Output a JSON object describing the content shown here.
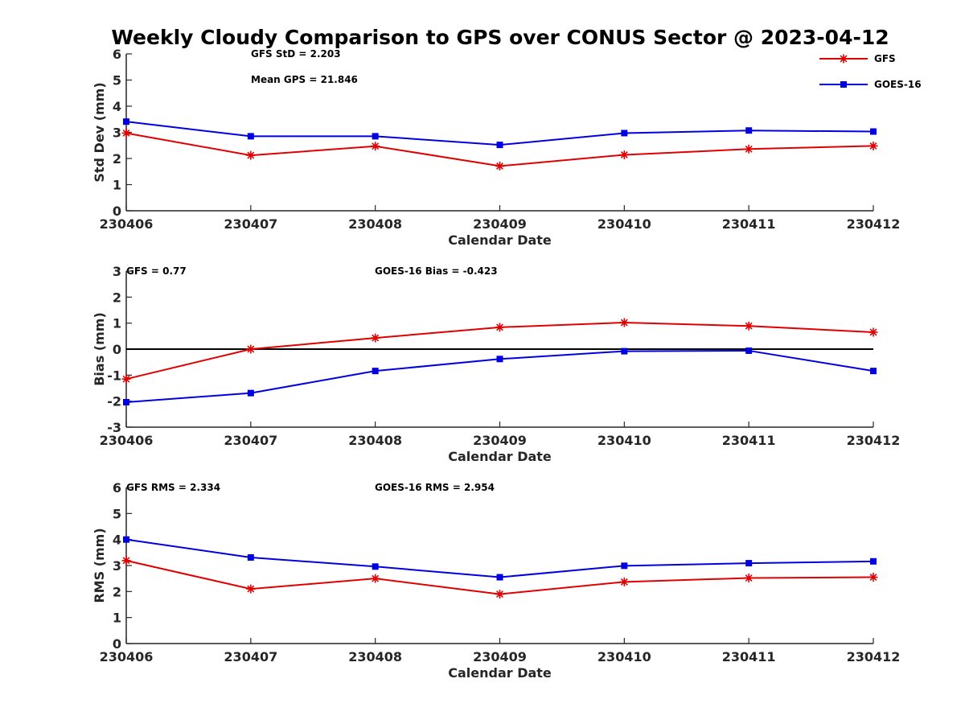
{
  "title": "Weekly Cloudy Comparison to GPS over CONUS Sector @ 2023-04-12",
  "legend": [
    {
      "label": "GFS",
      "color": "#e00000",
      "marker": "asterisk"
    },
    {
      "label": "GOES-16",
      "color": "#0000e0",
      "marker": "square"
    }
  ],
  "chart_data": [
    {
      "type": "line",
      "categories": [
        "230406",
        "230407",
        "230408",
        "230409",
        "230410",
        "230411",
        "230412"
      ],
      "xlabel": "Calendar Date",
      "ylabel": "Std Dev (mm)",
      "ylim": [
        0,
        6
      ],
      "yticks": [
        "0",
        "1",
        "2",
        "3",
        "4",
        "5",
        "6"
      ],
      "series": [
        {
          "name": "GFS",
          "color": "#e00000",
          "marker": "asterisk",
          "values": [
            2.97,
            2.12,
            2.47,
            1.71,
            2.14,
            2.36,
            2.48
          ]
        },
        {
          "name": "GOES-16",
          "color": "#0000e0",
          "marker": "square",
          "values": [
            3.41,
            2.85,
            2.85,
            2.52,
            2.97,
            3.07,
            3.03
          ]
        }
      ],
      "annotations": [
        "GFS StD = 2.203",
        "Mean GPS = 21.846"
      ]
    },
    {
      "type": "line",
      "categories": [
        "230406",
        "230407",
        "230408",
        "230409",
        "230410",
        "230411",
        "230412"
      ],
      "xlabel": "Calendar Date",
      "ylabel": "Bias (mm)",
      "ylim": [
        -3,
        3
      ],
      "yticks": [
        "-3",
        "-2",
        "-1",
        "0",
        "1",
        "2",
        "3"
      ],
      "zero_line": true,
      "series": [
        {
          "name": "GFS",
          "color": "#e00000",
          "marker": "asterisk",
          "values": [
            -1.15,
            0.0,
            0.43,
            0.84,
            1.02,
            0.89,
            0.65
          ]
        },
        {
          "name": "GOES-16",
          "color": "#0000e0",
          "marker": "square",
          "values": [
            -2.04,
            -1.69,
            -0.84,
            -0.38,
            -0.08,
            -0.06,
            -0.84
          ]
        }
      ],
      "annotations": [
        "GFS = 0.77",
        "GOES-16 Bias  = -0.423"
      ]
    },
    {
      "type": "line",
      "categories": [
        "230406",
        "230407",
        "230408",
        "230409",
        "230410",
        "230411",
        "230412"
      ],
      "xlabel": "Calendar Date",
      "ylabel": "RMS (mm)",
      "ylim": [
        0,
        6
      ],
      "yticks": [
        "0",
        "1",
        "2",
        "3",
        "4",
        "5",
        "6"
      ],
      "series": [
        {
          "name": "GFS",
          "color": "#e00000",
          "marker": "asterisk",
          "values": [
            3.19,
            2.1,
            2.5,
            1.9,
            2.37,
            2.52,
            2.55
          ]
        },
        {
          "name": "GOES-16",
          "color": "#0000e0",
          "marker": "square",
          "values": [
            4.0,
            3.31,
            2.96,
            2.55,
            2.99,
            3.09,
            3.16
          ]
        }
      ],
      "annotations": [
        "GFS RMS = 2.334",
        "GOES-16 RMS = 2.954"
      ]
    }
  ]
}
